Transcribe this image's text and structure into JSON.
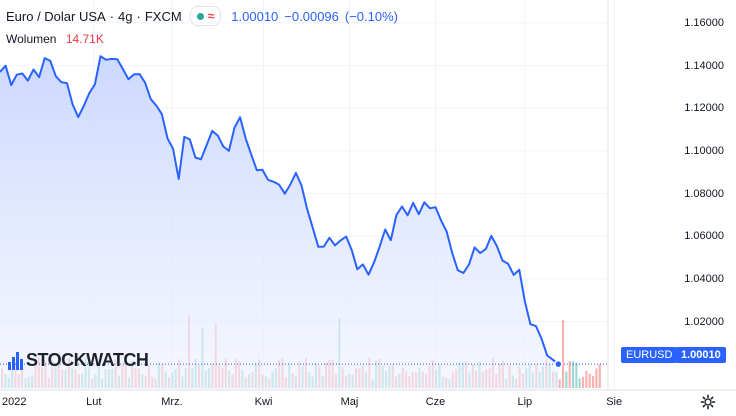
{
  "legend": {
    "symbol_name": "Euro / Dolar USA",
    "interval": "4g",
    "exchange": "FXCM",
    "price": "1.00010",
    "change": "−0.00096",
    "change_pct": "(−0.10%)",
    "status_icons": [
      "market-open-dot-icon",
      "approx-icon"
    ]
  },
  "volume_legend": {
    "label": "Wolumen",
    "value": "14.71K"
  },
  "price_scale_label": {
    "symbol": "EURUSD",
    "price": "1.00010"
  },
  "watermark": {
    "text": "STOCKWATCH"
  },
  "colors": {
    "line": "#2962ff",
    "area_top": "#c9d6ff",
    "vol_up": "#26a69a",
    "vol_down": "#ef5350",
    "text": "#131722"
  },
  "chart_data": {
    "type": "area",
    "title": "Euro / Dolar USA · 4g · FXCM",
    "ylabel": "",
    "xlabel": "",
    "ylim": [
      0.988,
      1.166
    ],
    "xlim": [
      0,
      54
    ],
    "y_ticks": [
      "1.16000",
      "1.14000",
      "1.12000",
      "1.10000",
      "1.08000",
      "1.06000",
      "1.04000",
      "1.02000"
    ],
    "y_tick_values": [
      1.16,
      1.14,
      1.12,
      1.1,
      1.08,
      1.06,
      1.04,
      1.02
    ],
    "x_ticks": [
      "2022",
      "Lut",
      "Mrz.",
      "Kwi",
      "Maj",
      "Cze",
      "Lip",
      "Sie"
    ],
    "x_tick_values": [
      0,
      8.4,
      15.4,
      23.6,
      31.3,
      39.0,
      47.0,
      55.0
    ],
    "series": [
      {
        "name": "EURUSD",
        "x": [
          0,
          0.5,
          1,
          1.5,
          2,
          2.5,
          3,
          3.5,
          4,
          4.5,
          5,
          5.5,
          6,
          6.5,
          7,
          7.5,
          8,
          8.5,
          9,
          9.5,
          10,
          10.5,
          11,
          11.5,
          12,
          12.5,
          13,
          13.5,
          14,
          14.5,
          15,
          15.5,
          16,
          16.5,
          17,
          17.5,
          18,
          18.5,
          19,
          19.5,
          20,
          20.5,
          21,
          21.5,
          22,
          22.5,
          23,
          23.5,
          24,
          24.5,
          25,
          25.5,
          26,
          26.5,
          27,
          27.5,
          28,
          28.5,
          29,
          29.5,
          30,
          30.5,
          31,
          31.5,
          32,
          32.5,
          33,
          33.5,
          34,
          34.5,
          35,
          35.5,
          36,
          36.5,
          37,
          37.5,
          38,
          38.5,
          39,
          39.5,
          40,
          40.5,
          41,
          41.5,
          42,
          42.5,
          43,
          43.5,
          44,
          44.5,
          45,
          45.5,
          46,
          46.5,
          47,
          47.5,
          48,
          48.5,
          49,
          49.5,
          50
        ],
        "values": [
          1.137,
          1.139,
          1.132,
          1.135,
          1.136,
          1.134,
          1.137,
          1.135,
          1.144,
          1.141,
          1.136,
          1.132,
          1.131,
          1.123,
          1.115,
          1.121,
          1.128,
          1.13,
          1.145,
          1.143,
          1.142,
          1.144,
          1.138,
          1.133,
          1.137,
          1.135,
          1.132,
          1.125,
          1.12,
          1.118,
          1.106,
          1.1,
          1.088,
          1.106,
          1.105,
          1.098,
          1.095,
          1.103,
          1.11,
          1.106,
          1.103,
          1.1,
          1.11,
          1.117,
          1.105,
          1.098,
          1.092,
          1.09,
          1.087,
          1.086,
          1.083,
          1.081,
          1.084,
          1.089,
          1.085,
          1.072,
          1.064,
          1.056,
          1.054,
          1.06,
          1.056,
          1.057,
          1.061,
          1.053,
          1.044,
          1.048,
          1.041,
          1.048,
          1.056,
          1.062,
          1.059,
          1.07,
          1.073,
          1.071,
          1.075,
          1.07,
          1.077,
          1.072,
          1.074,
          1.068,
          1.061,
          1.053,
          1.044,
          1.042,
          1.048,
          1.054,
          1.052,
          1.055,
          1.059,
          1.056,
          1.049,
          1.046,
          1.043,
          1.044,
          1.029,
          1.02,
          1.017,
          1.012,
          1.005,
          1.001,
          1.0001
        ]
      }
    ],
    "last_value": 1.0001,
    "volume": {
      "series_name": "Wolumen",
      "bars": 180,
      "typical": 9.0,
      "spike": 28.0,
      "ylim": [
        0,
        40
      ]
    }
  }
}
